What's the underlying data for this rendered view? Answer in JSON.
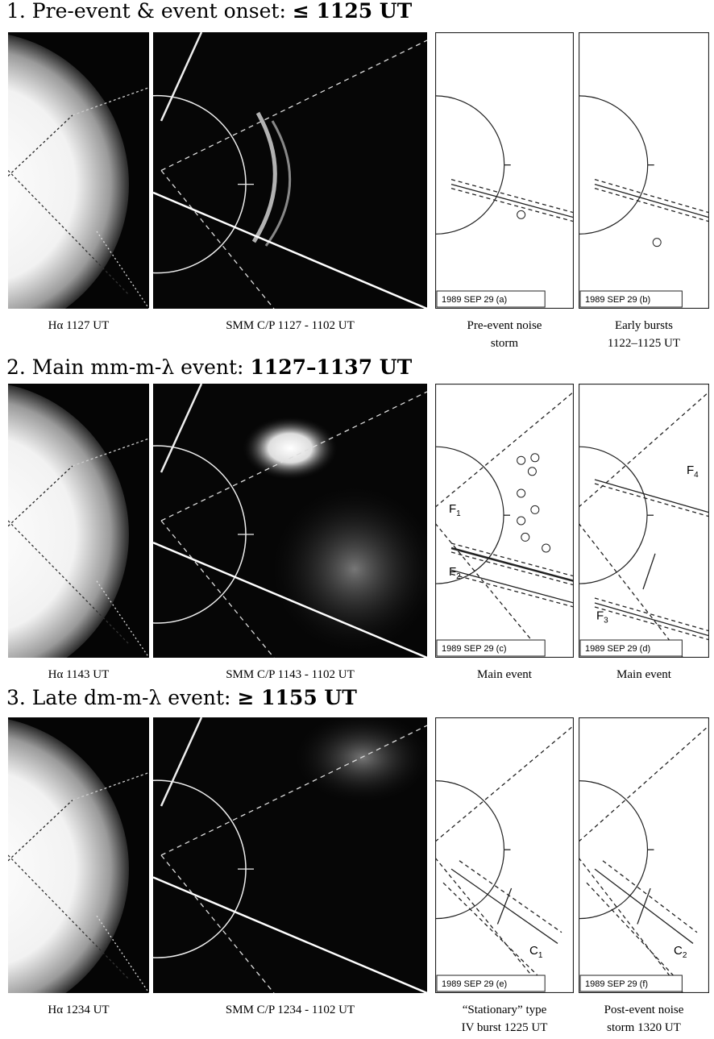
{
  "rows": [
    {
      "heading": [
        "1. Pre-event & event onset:",
        "≤ 1125 UT"
      ],
      "panels": [
        {
          "caption": [
            "Hα 1127 UT"
          ]
        },
        {
          "caption": [
            "SMM C/P 1127 - 1102 UT"
          ]
        },
        {
          "stamp": "1989 SEP 29 (a)",
          "caption": [
            "Pre-event noise",
            "storm"
          ]
        },
        {
          "stamp": "1989 SEP 29 (b)",
          "caption": [
            "Early bursts",
            "1122–1125 UT"
          ]
        }
      ]
    },
    {
      "heading": [
        "2. Main mm-m-λ event:",
        "1127–1137 UT"
      ],
      "panels": [
        {
          "caption": [
            "Hα 1143 UT"
          ]
        },
        {
          "caption": [
            "SMM C/P 1143 - 1102 UT"
          ]
        },
        {
          "stamp": "1989 SEP 29 (c)",
          "caption": [
            "Main event"
          ],
          "labels": [
            {
              "text": "F",
              "sub": "1"
            },
            {
              "text": "F",
              "sub": "2"
            }
          ]
        },
        {
          "stamp": "1989 SEP 29 (d)",
          "caption": [
            "Main event"
          ],
          "labels": [
            {
              "text": "F",
              "sub": "4"
            },
            {
              "text": "F",
              "sub": "3"
            }
          ]
        }
      ]
    },
    {
      "heading": [
        "3. Late dm-m-λ event:",
        "≥ 1155 UT"
      ],
      "panels": [
        {
          "caption": [
            "Hα 1234 UT"
          ]
        },
        {
          "caption": [
            "SMM C/P 1234 - 1102 UT"
          ]
        },
        {
          "stamp": "1989 SEP 29 (e)",
          "caption": [
            "“Stationary” type",
            "IV burst 1225 UT"
          ],
          "labels": [
            {
              "text": "C",
              "sub": "1"
            }
          ]
        },
        {
          "stamp": "1989 SEP 29 (f)",
          "caption": [
            "Post-event noise",
            "storm 1320 UT"
          ],
          "labels": [
            {
              "text": "C",
              "sub": "2"
            }
          ]
        }
      ]
    }
  ]
}
